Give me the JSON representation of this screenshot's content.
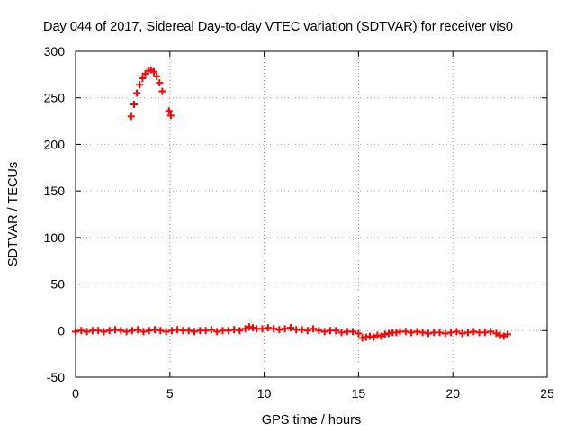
{
  "chart_data": {
    "type": "scatter",
    "title": "Day 044 of 2017, Sidereal Day-to-day VTEC variation (SDTVAR) for receiver vis0",
    "xlabel": "GPS time / hours",
    "ylabel": "SDTVAR / TECUs",
    "xlim": [
      0,
      25
    ],
    "ylim": [
      -50,
      300
    ],
    "xticks": [
      "0",
      "5",
      "10",
      "15",
      "20",
      "25"
    ],
    "yticks": [
      "-50",
      "0",
      "50",
      "100",
      "150",
      "200",
      "250",
      "300"
    ],
    "grid": true,
    "legend": "none",
    "marker": "plus",
    "color": "#ff0000",
    "series": [
      {
        "x": [
          0.0,
          0.3,
          0.6,
          0.9,
          1.2,
          1.5,
          1.8,
          2.1,
          2.4,
          2.7,
          3.0,
          3.3,
          3.6,
          3.9,
          4.2,
          4.5,
          4.8,
          5.1,
          5.4,
          5.7,
          6.0,
          6.3,
          6.6,
          6.9,
          7.2,
          7.5,
          7.8,
          8.1,
          8.4,
          8.7,
          9.0,
          9.2,
          9.4,
          9.6,
          9.9,
          10.2,
          10.5,
          10.8,
          11.1,
          11.4,
          11.7,
          12.0,
          12.3,
          12.6,
          12.9,
          13.2,
          13.5,
          13.8,
          14.1,
          14.4,
          14.7,
          15.0,
          15.2,
          15.4,
          15.6,
          15.8,
          16.0,
          16.2,
          16.4,
          16.6,
          16.8,
          17.0,
          17.2,
          17.5,
          17.8,
          18.1,
          18.4,
          18.7,
          19.0,
          19.3,
          19.6,
          19.9,
          20.2,
          20.5,
          20.8,
          21.1,
          21.4,
          21.7,
          22.0,
          22.3,
          22.5,
          22.7,
          22.9
        ],
        "y": [
          -1,
          0,
          -1,
          0,
          0,
          -1,
          0,
          1,
          0,
          -1,
          0,
          1,
          -1,
          0,
          1,
          0,
          -1,
          0,
          1,
          0,
          0,
          -1,
          0,
          0,
          1,
          -1,
          0,
          0,
          1,
          0,
          2,
          4,
          3,
          2,
          2,
          3,
          2,
          1,
          2,
          3,
          1,
          1,
          0,
          2,
          0,
          -1,
          0,
          0,
          -2,
          -1,
          -1,
          -3,
          -8,
          -7,
          -6,
          -7,
          -5,
          -6,
          -4,
          -3,
          -2,
          -2,
          -1,
          -1,
          -2,
          -1,
          -2,
          -3,
          -2,
          -2,
          -3,
          -2,
          -1,
          -3,
          -2,
          -1,
          -2,
          -2,
          -1,
          -3,
          -5,
          -6,
          -4
        ]
      },
      {
        "x": [
          2.95,
          3.1,
          3.25,
          3.4,
          3.55,
          3.7,
          3.85,
          4.0,
          4.15,
          4.3,
          4.45,
          4.6
        ],
        "y": [
          230,
          243,
          255,
          264,
          271,
          276,
          279,
          280,
          278,
          273,
          266,
          257
        ]
      },
      {
        "x": [
          4.95,
          5.05
        ],
        "y": [
          236,
          231
        ]
      }
    ]
  }
}
